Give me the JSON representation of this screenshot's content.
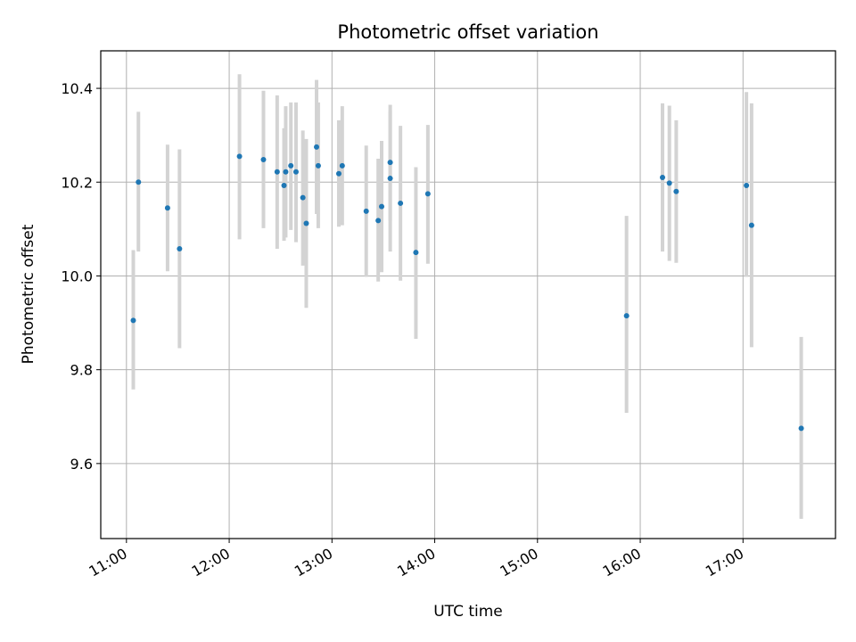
{
  "chart_data": {
    "type": "scatter",
    "title": "Photometric offset variation",
    "xlabel": "UTC time",
    "ylabel": "Photometric offset",
    "xlim_hours": [
      10.75,
      17.9
    ],
    "ylim": [
      9.44,
      10.48
    ],
    "grid": true,
    "x_ticks": [
      {
        "hour": 11,
        "label": "11:00"
      },
      {
        "hour": 12,
        "label": "12:00"
      },
      {
        "hour": 13,
        "label": "13:00"
      },
      {
        "hour": 14,
        "label": "14:00"
      },
      {
        "hour": 15,
        "label": "15:00"
      },
      {
        "hour": 16,
        "label": "16:00"
      },
      {
        "hour": 17,
        "label": "17:00"
      }
    ],
    "y_ticks": [
      {
        "value": 9.6,
        "label": "9.6"
      },
      {
        "value": 9.8,
        "label": "9.8"
      },
      {
        "value": 10.0,
        "label": "10.0"
      },
      {
        "value": 10.2,
        "label": "10.2"
      },
      {
        "value": 10.4,
        "label": "10.4"
      }
    ],
    "colors": {
      "point": "#1f77b4",
      "errorbar": "#d3d3d3",
      "grid": "#b0b0b0",
      "axes": "#000000"
    },
    "points": [
      {
        "x": "11:04",
        "y": 9.905,
        "ylow": 9.758,
        "yhigh": 10.055
      },
      {
        "x": "11:07",
        "y": 10.2,
        "ylow": 10.052,
        "yhigh": 10.35
      },
      {
        "x": "11:24",
        "y": 10.145,
        "ylow": 10.01,
        "yhigh": 10.28
      },
      {
        "x": "11:31",
        "y": 10.058,
        "ylow": 9.846,
        "yhigh": 10.27
      },
      {
        "x": "12:06",
        "y": 10.255,
        "ylow": 10.078,
        "yhigh": 10.43
      },
      {
        "x": "12:20",
        "y": 10.248,
        "ylow": 10.102,
        "yhigh": 10.395
      },
      {
        "x": "12:28",
        "y": 10.222,
        "ylow": 10.058,
        "yhigh": 10.385
      },
      {
        "x": "12:32",
        "y": 10.193,
        "ylow": 10.075,
        "yhigh": 10.315
      },
      {
        "x": "12:33",
        "y": 10.222,
        "ylow": 10.082,
        "yhigh": 10.362
      },
      {
        "x": "12:36",
        "y": 10.235,
        "ylow": 10.098,
        "yhigh": 10.37
      },
      {
        "x": "12:39",
        "y": 10.222,
        "ylow": 10.072,
        "yhigh": 10.37
      },
      {
        "x": "12:43",
        "y": 10.167,
        "ylow": 10.022,
        "yhigh": 10.31
      },
      {
        "x": "12:45",
        "y": 10.112,
        "ylow": 9.932,
        "yhigh": 10.292
      },
      {
        "x": "12:51",
        "y": 10.275,
        "ylow": 10.132,
        "yhigh": 10.418
      },
      {
        "x": "12:52",
        "y": 10.235,
        "ylow": 10.102,
        "yhigh": 10.37
      },
      {
        "x": "13:04",
        "y": 10.218,
        "ylow": 10.105,
        "yhigh": 10.332
      },
      {
        "x": "13:06",
        "y": 10.235,
        "ylow": 10.108,
        "yhigh": 10.362
      },
      {
        "x": "13:20",
        "y": 10.138,
        "ylow": 9.998,
        "yhigh": 10.278
      },
      {
        "x": "13:27",
        "y": 10.118,
        "ylow": 9.988,
        "yhigh": 10.25
      },
      {
        "x": "13:29",
        "y": 10.148,
        "ylow": 10.008,
        "yhigh": 10.288
      },
      {
        "x": "13:34",
        "y": 10.242,
        "ylow": 10.118,
        "yhigh": 10.365
      },
      {
        "x": "13:34",
        "y": 10.208,
        "ylow": 10.052,
        "yhigh": 10.352
      },
      {
        "x": "13:40",
        "y": 10.155,
        "ylow": 9.99,
        "yhigh": 10.32
      },
      {
        "x": "13:49",
        "y": 10.05,
        "ylow": 9.866,
        "yhigh": 10.232
      },
      {
        "x": "13:56",
        "y": 10.175,
        "ylow": 10.026,
        "yhigh": 10.322
      },
      {
        "x": "15:52",
        "y": 9.915,
        "ylow": 9.708,
        "yhigh": 10.128
      },
      {
        "x": "16:13",
        "y": 10.21,
        "ylow": 10.052,
        "yhigh": 10.368
      },
      {
        "x": "16:17",
        "y": 10.198,
        "ylow": 10.032,
        "yhigh": 10.363
      },
      {
        "x": "16:21",
        "y": 10.18,
        "ylow": 10.028,
        "yhigh": 10.332
      },
      {
        "x": "17:02",
        "y": 10.193,
        "ylow": 9.998,
        "yhigh": 10.392
      },
      {
        "x": "17:05",
        "y": 10.108,
        "ylow": 9.848,
        "yhigh": 10.368
      },
      {
        "x": "17:34",
        "y": 9.675,
        "ylow": 9.482,
        "yhigh": 9.87
      }
    ]
  }
}
